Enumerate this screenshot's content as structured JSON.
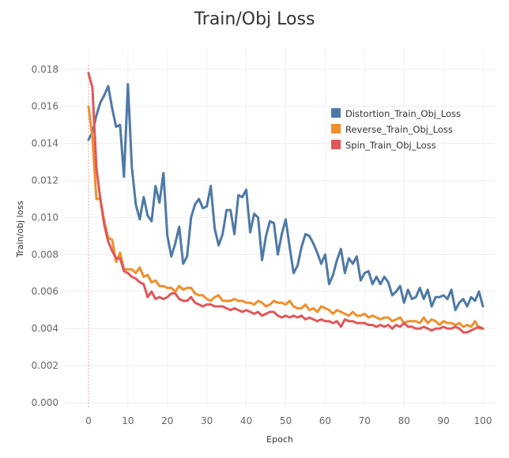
{
  "chart_data": {
    "type": "line",
    "title": "Train/Obj Loss",
    "xlabel": "Epoch",
    "ylabel": "Train/obj loss",
    "xlim": [
      -6,
      103
    ],
    "ylim": [
      -0.0003,
      0.0191
    ],
    "xticks": [
      0,
      10,
      20,
      30,
      40,
      50,
      60,
      70,
      80,
      90,
      100
    ],
    "yticks": [
      "0.000",
      "0.002",
      "0.004",
      "0.006",
      "0.008",
      "0.010",
      "0.012",
      "0.014",
      "0.016",
      "0.018"
    ],
    "grid": true,
    "legend_position": "top-right",
    "series": [
      {
        "name": "Distortion_Train_Obj_Loss",
        "color": "#4e79a7",
        "values": [
          0.0142,
          0.0146,
          0.0155,
          0.0162,
          0.0166,
          0.0171,
          0.0159,
          0.0149,
          0.015,
          0.0122,
          0.0172,
          0.0127,
          0.0107,
          0.0099,
          0.0111,
          0.0101,
          0.0098,
          0.0117,
          0.0108,
          0.0124,
          0.009,
          0.0079,
          0.0086,
          0.0095,
          0.0075,
          0.0079,
          0.01,
          0.0107,
          0.011,
          0.0105,
          0.0106,
          0.0117,
          0.0094,
          0.0085,
          0.0091,
          0.0104,
          0.0104,
          0.0091,
          0.0112,
          0.0111,
          0.0115,
          0.0092,
          0.0102,
          0.01,
          0.0077,
          0.009,
          0.0098,
          0.0097,
          0.008,
          0.0091,
          0.0099,
          0.0084,
          0.007,
          0.0074,
          0.0084,
          0.0091,
          0.009,
          0.0086,
          0.0081,
          0.0075,
          0.008,
          0.0064,
          0.0069,
          0.0077,
          0.0083,
          0.007,
          0.0078,
          0.0075,
          0.0079,
          0.0066,
          0.007,
          0.0071,
          0.0064,
          0.0068,
          0.0064,
          0.0068,
          0.0065,
          0.0058,
          0.006,
          0.0063,
          0.0054,
          0.0061,
          0.0056,
          0.0057,
          0.0062,
          0.0056,
          0.0061,
          0.0052,
          0.0057,
          0.0057,
          0.0058,
          0.0056,
          0.0061,
          0.005,
          0.0054,
          0.0056,
          0.0052,
          0.0057,
          0.0055,
          0.006,
          0.0052
        ]
      },
      {
        "name": "Reverse_Train_Obj_Loss",
        "color": "#f28e2b",
        "values": [
          0.016,
          0.0143,
          0.011,
          0.011,
          0.0098,
          0.0089,
          0.0088,
          0.0076,
          0.0081,
          0.0072,
          0.0072,
          0.0072,
          0.007,
          0.0073,
          0.0068,
          0.0069,
          0.0065,
          0.0066,
          0.0063,
          0.0063,
          0.0062,
          0.0062,
          0.006,
          0.0063,
          0.0061,
          0.0062,
          0.0062,
          0.0059,
          0.0058,
          0.0058,
          0.0056,
          0.0055,
          0.0057,
          0.0058,
          0.0055,
          0.0055,
          0.0055,
          0.0056,
          0.0055,
          0.0055,
          0.0054,
          0.0054,
          0.0053,
          0.0055,
          0.0054,
          0.0052,
          0.0053,
          0.0055,
          0.0054,
          0.0054,
          0.0053,
          0.0055,
          0.0052,
          0.0051,
          0.0051,
          0.0053,
          0.005,
          0.0051,
          0.0049,
          0.0052,
          0.0051,
          0.005,
          0.0048,
          0.005,
          0.0049,
          0.0048,
          0.0047,
          0.0049,
          0.0047,
          0.0047,
          0.0048,
          0.0046,
          0.0047,
          0.0046,
          0.0045,
          0.0046,
          0.0046,
          0.0044,
          0.0045,
          0.0046,
          0.0043,
          0.0044,
          0.0044,
          0.0044,
          0.0043,
          0.0046,
          0.0043,
          0.0045,
          0.0044,
          0.0042,
          0.0044,
          0.0043,
          0.0043,
          0.0042,
          0.0043,
          0.0041,
          0.0042,
          0.0041,
          0.0044,
          0.004,
          0.004
        ]
      },
      {
        "name": "Spin_Train_Obj_Loss",
        "color": "#e15759",
        "values": [
          0.0178,
          0.017,
          0.0127,
          0.011,
          0.0096,
          0.0087,
          0.0082,
          0.0078,
          0.0078,
          0.0071,
          0.007,
          0.0068,
          0.0067,
          0.0065,
          0.0064,
          0.0057,
          0.006,
          0.0056,
          0.0057,
          0.0056,
          0.0057,
          0.0059,
          0.0059,
          0.0056,
          0.0055,
          0.0055,
          0.0057,
          0.0054,
          0.0053,
          0.0052,
          0.0053,
          0.0053,
          0.0052,
          0.0052,
          0.0052,
          0.0051,
          0.005,
          0.0051,
          0.005,
          0.0049,
          0.005,
          0.0049,
          0.0048,
          0.0049,
          0.0047,
          0.0048,
          0.0049,
          0.0049,
          0.0047,
          0.0046,
          0.0047,
          0.0046,
          0.0047,
          0.0046,
          0.0047,
          0.0045,
          0.0046,
          0.0045,
          0.0044,
          0.0045,
          0.0044,
          0.0044,
          0.0043,
          0.0044,
          0.0041,
          0.0045,
          0.0044,
          0.0044,
          0.0043,
          0.0043,
          0.0043,
          0.0042,
          0.0042,
          0.0041,
          0.0042,
          0.0041,
          0.0042,
          0.004,
          0.0042,
          0.0041,
          0.0043,
          0.0041,
          0.0041,
          0.004,
          0.004,
          0.0041,
          0.004,
          0.0039,
          0.004,
          0.004,
          0.0041,
          0.004,
          0.004,
          0.0041,
          0.004,
          0.0038,
          0.0038,
          0.0039,
          0.004,
          0.0041,
          0.004
        ]
      }
    ]
  }
}
